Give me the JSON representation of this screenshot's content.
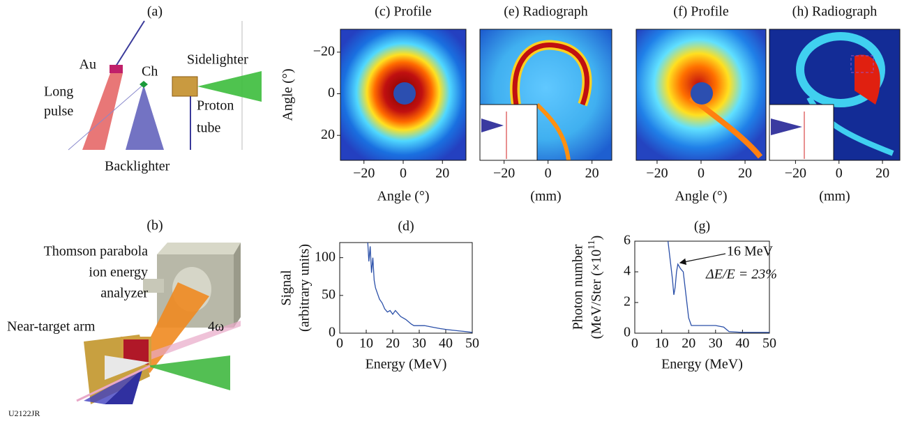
{
  "figure_id": "U2122JR",
  "panel_a": {
    "label": "(a)",
    "au": "Au",
    "ch": "Ch",
    "long_pulse": [
      "Long",
      "pulse"
    ],
    "sidelighter": "Sidelighter",
    "proton_tube": [
      "Proton",
      "tube"
    ],
    "backlighter": "Backlighter"
  },
  "panel_b": {
    "label": "(b)",
    "analyzer": [
      "Thomson parabola",
      "ion energy",
      "analyzer"
    ],
    "arm": "Near-target arm",
    "beam": "4ω"
  },
  "images": [
    {
      "title": "(c) Profile",
      "xlabel": "Angle (°)",
      "ylabel": "Angle (°)",
      "xlim": [
        -32,
        32
      ],
      "xticks": [
        {
          "value": -20,
          "label": "−20"
        },
        0,
        20
      ],
      "ylim": [
        -31,
        32
      ],
      "yticks": [
        {
          "value": -20,
          "label": "−20"
        },
        0,
        20
      ]
    },
    {
      "title": "(e) Radiograph",
      "xlabel": "(mm)",
      "xlim": [
        -31,
        29
      ],
      "xticks": [
        {
          "value": -20,
          "label": "−20"
        },
        0,
        20
      ]
    },
    {
      "title": "(f) Profile",
      "xlabel": "Angle (°)",
      "xlim": [
        -29.5,
        29.5
      ],
      "xticks": [
        {
          "value": -20,
          "label": "−20"
        },
        0,
        20
      ]
    },
    {
      "title": "(h) Radiograph",
      "xlabel": "(mm)",
      "xlim": [
        -32,
        28
      ],
      "xticks": [
        {
          "value": -20,
          "label": "−20"
        },
        0,
        20
      ]
    }
  ],
  "chart_data": [
    {
      "type": "line",
      "title": "(d)",
      "xlabel": "Energy (MeV)",
      "ylabel": [
        "Signal",
        "(arbitrary units)"
      ],
      "x": [
        10.5,
        11,
        11.5,
        12,
        12.5,
        13,
        13.5,
        14,
        15,
        16,
        17,
        18,
        19,
        20,
        21,
        22,
        23,
        24,
        25,
        26,
        27,
        28,
        30,
        32,
        35,
        38,
        40,
        45,
        48,
        50
      ],
      "series": [
        {
          "color": "#2a4fa8",
          "values": [
            125,
            95,
            115,
            80,
            100,
            70,
            60,
            55,
            45,
            40,
            32,
            28,
            30,
            25,
            30,
            26,
            22,
            20,
            18,
            15,
            12,
            10,
            10,
            10,
            8,
            6,
            5,
            3,
            2,
            1
          ]
        }
      ],
      "xlim": [
        0,
        50
      ],
      "xticks": [
        0,
        10,
        20,
        30,
        40,
        50
      ],
      "ylim": [
        0,
        120
      ],
      "yticks": [
        0,
        50,
        100
      ]
    },
    {
      "type": "line",
      "title": "(g)",
      "xlabel": "Energy (MeV)",
      "ylabel": [
        "Photon number",
        "(MeV/Ster (×10",
        "11",
        ")"
      ],
      "x": [
        12,
        13,
        14,
        14.5,
        15,
        15.5,
        16,
        17,
        18,
        19,
        20,
        21,
        23,
        25,
        28,
        30,
        33,
        35,
        40,
        45,
        50
      ],
      "series": [
        {
          "color": "#2a4fa8",
          "values": [
            6.5,
            5,
            3.5,
            2.5,
            3,
            4,
            4.5,
            4.2,
            4.0,
            2.5,
            1,
            0.5,
            0.5,
            0.5,
            0.5,
            0.5,
            0.4,
            0.1,
            0.05,
            0.05,
            0.05
          ]
        }
      ],
      "xlim": [
        0,
        50
      ],
      "xticks": [
        0,
        10,
        20,
        30,
        40,
        50
      ],
      "ylim": [
        0,
        6
      ],
      "yticks": [
        0,
        2,
        4,
        6
      ],
      "annotations": [
        "16 MeV",
        "ΔE/E = 23%"
      ]
    }
  ]
}
